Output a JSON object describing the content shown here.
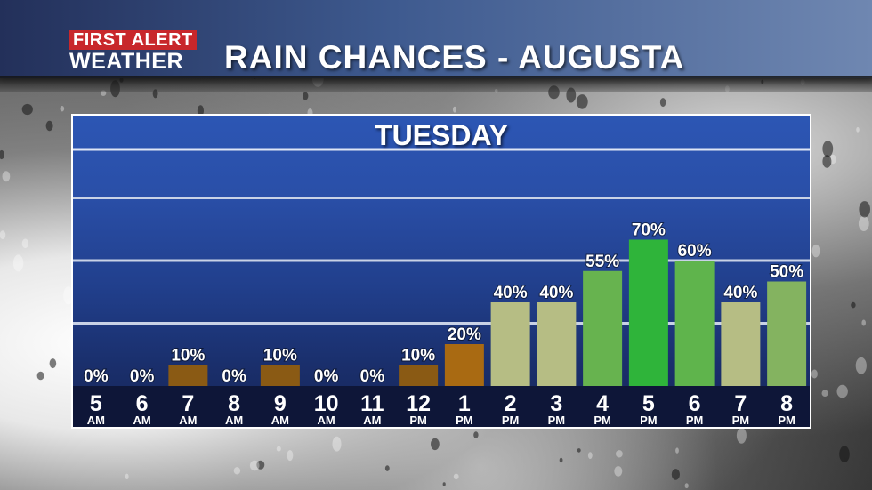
{
  "header": {
    "logo_line1": "FIRST ALERT",
    "logo_line2": "WEATHER",
    "title": "RAIN CHANCES - AUGUSTA"
  },
  "panel": {
    "day": "TUESDAY"
  },
  "chart_data": {
    "type": "bar",
    "title": "TUESDAY",
    "categories": [
      {
        "hour": "5",
        "period": "AM"
      },
      {
        "hour": "6",
        "period": "AM"
      },
      {
        "hour": "7",
        "period": "AM"
      },
      {
        "hour": "8",
        "period": "AM"
      },
      {
        "hour": "9",
        "period": "AM"
      },
      {
        "hour": "10",
        "period": "AM"
      },
      {
        "hour": "11",
        "period": "AM"
      },
      {
        "hour": "12",
        "period": "PM"
      },
      {
        "hour": "1",
        "period": "PM"
      },
      {
        "hour": "2",
        "period": "PM"
      },
      {
        "hour": "3",
        "period": "PM"
      },
      {
        "hour": "4",
        "period": "PM"
      },
      {
        "hour": "5",
        "period": "PM"
      },
      {
        "hour": "6",
        "period": "PM"
      },
      {
        "hour": "7",
        "period": "PM"
      },
      {
        "hour": "8",
        "period": "PM"
      }
    ],
    "values": [
      0,
      0,
      10,
      0,
      10,
      0,
      0,
      10,
      20,
      40,
      40,
      55,
      70,
      60,
      40,
      50
    ],
    "labels": [
      "0%",
      "0%",
      "10%",
      "0%",
      "10%",
      "0%",
      "0%",
      "10%",
      "20%",
      "40%",
      "40%",
      "55%",
      "70%",
      "60%",
      "40%",
      "50%"
    ],
    "colors": [
      "#8a5a14",
      "#8a5a14",
      "#8a5a14",
      "#8a5a14",
      "#8a5a14",
      "#8a5a14",
      "#8a5a14",
      "#8a5a14",
      "#a96a12",
      "#b6bd84",
      "#b6bd84",
      "#67b34f",
      "#2fb43a",
      "#5fb44c",
      "#b6bd84",
      "#84b360"
    ],
    "ylim": [
      0,
      100
    ],
    "grid": true
  }
}
